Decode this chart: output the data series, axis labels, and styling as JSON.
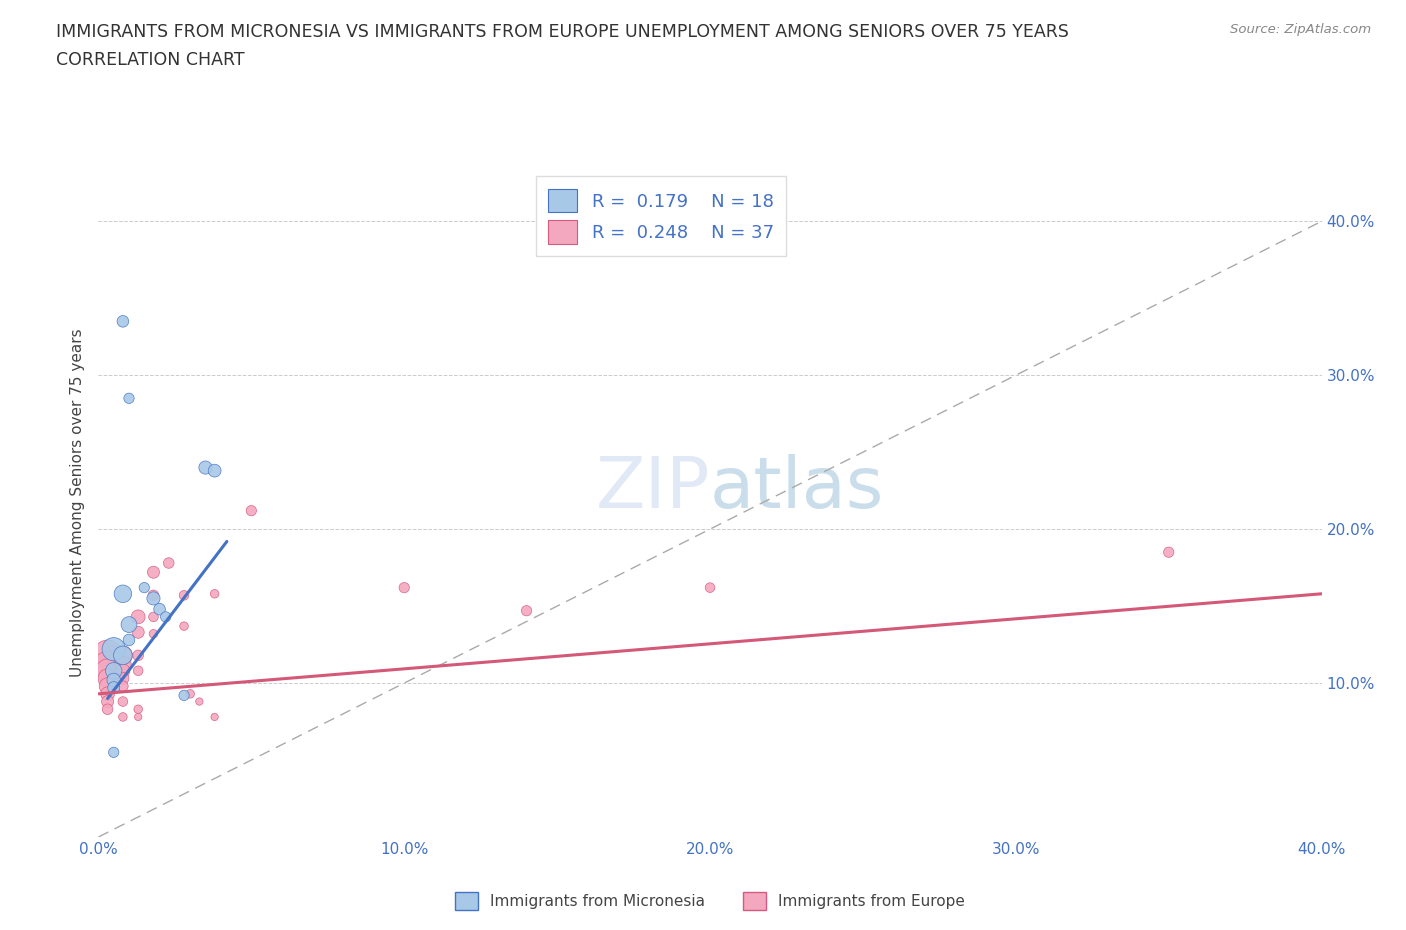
{
  "title_line1": "IMMIGRANTS FROM MICRONESIA VS IMMIGRANTS FROM EUROPE UNEMPLOYMENT AMONG SENIORS OVER 75 YEARS",
  "title_line2": "CORRELATION CHART",
  "source": "Source: ZipAtlas.com",
  "ylabel": "Unemployment Among Seniors over 75 years",
  "xlim": [
    0.0,
    0.4
  ],
  "ylim": [
    0.0,
    0.435
  ],
  "xticks": [
    0.0,
    0.1,
    0.2,
    0.3,
    0.4
  ],
  "yticks": [
    0.1,
    0.2,
    0.3,
    0.4
  ],
  "xticklabels": [
    "0.0%",
    "10.0%",
    "20.0%",
    "30.0%",
    "40.0%"
  ],
  "yticklabels": [
    "10.0%",
    "20.0%",
    "30.0%",
    "40.0%"
  ],
  "R_micronesia": 0.179,
  "N_micronesia": 18,
  "R_europe": 0.248,
  "N_europe": 37,
  "color_micronesia_fill": "#a8c8e8",
  "color_micronesia_edge": "#4472c4",
  "color_europe_fill": "#f4a8c0",
  "color_europe_edge": "#d45a80",
  "color_micro_line": "#4472c4",
  "color_euro_line": "#d45878",
  "color_diag": "#aaaaaa",
  "micronesia_points": [
    [
      0.008,
      0.335
    ],
    [
      0.01,
      0.285
    ],
    [
      0.035,
      0.24
    ],
    [
      0.038,
      0.238
    ],
    [
      0.015,
      0.162
    ],
    [
      0.008,
      0.158
    ],
    [
      0.018,
      0.155
    ],
    [
      0.02,
      0.148
    ],
    [
      0.022,
      0.143
    ],
    [
      0.01,
      0.138
    ],
    [
      0.01,
      0.128
    ],
    [
      0.005,
      0.122
    ],
    [
      0.008,
      0.118
    ],
    [
      0.005,
      0.108
    ],
    [
      0.005,
      0.102
    ],
    [
      0.005,
      0.097
    ],
    [
      0.028,
      0.092
    ],
    [
      0.005,
      0.055
    ]
  ],
  "micronesia_sizes": [
    70,
    55,
    90,
    85,
    55,
    160,
    90,
    70,
    55,
    130,
    70,
    280,
    180,
    140,
    95,
    75,
    55,
    55
  ],
  "europe_points": [
    [
      0.003,
      0.118
    ],
    [
      0.003,
      0.112
    ],
    [
      0.003,
      0.108
    ],
    [
      0.003,
      0.103
    ],
    [
      0.003,
      0.098
    ],
    [
      0.003,
      0.093
    ],
    [
      0.003,
      0.088
    ],
    [
      0.003,
      0.083
    ],
    [
      0.008,
      0.118
    ],
    [
      0.008,
      0.112
    ],
    [
      0.008,
      0.108
    ],
    [
      0.008,
      0.103
    ],
    [
      0.008,
      0.098
    ],
    [
      0.008,
      0.088
    ],
    [
      0.008,
      0.078
    ],
    [
      0.013,
      0.143
    ],
    [
      0.013,
      0.133
    ],
    [
      0.013,
      0.118
    ],
    [
      0.013,
      0.108
    ],
    [
      0.013,
      0.083
    ],
    [
      0.013,
      0.078
    ],
    [
      0.018,
      0.172
    ],
    [
      0.018,
      0.157
    ],
    [
      0.018,
      0.143
    ],
    [
      0.018,
      0.132
    ],
    [
      0.023,
      0.178
    ],
    [
      0.028,
      0.157
    ],
    [
      0.028,
      0.137
    ],
    [
      0.03,
      0.093
    ],
    [
      0.033,
      0.088
    ],
    [
      0.038,
      0.158
    ],
    [
      0.038,
      0.078
    ],
    [
      0.05,
      0.212
    ],
    [
      0.1,
      0.162
    ],
    [
      0.14,
      0.147
    ],
    [
      0.2,
      0.162
    ],
    [
      0.35,
      0.185
    ]
  ],
  "europe_sizes": [
    480,
    380,
    290,
    190,
    145,
    100,
    75,
    58,
    190,
    145,
    100,
    75,
    58,
    48,
    38,
    100,
    75,
    58,
    48,
    38,
    28,
    75,
    58,
    48,
    38,
    58,
    48,
    38,
    38,
    28,
    38,
    28,
    55,
    55,
    55,
    48,
    55
  ],
  "micro_line_x": [
    0.003,
    0.042
  ],
  "micro_line_y": [
    0.09,
    0.192
  ],
  "euro_line_x": [
    0.0,
    0.4
  ],
  "euro_line_y": [
    0.093,
    0.158
  ]
}
